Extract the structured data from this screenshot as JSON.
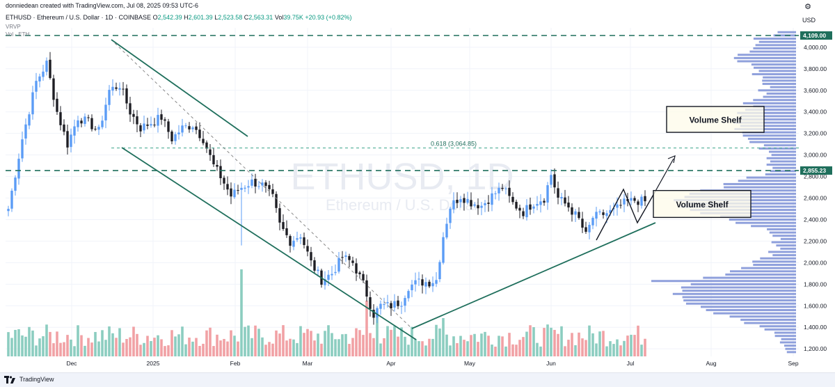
{
  "header": {
    "created_by": "donniedean created with TradingView.com, Jul 08, 2025 09:53 UTC-6",
    "symbol_line": "ETHUSD · Ethereum / U.S. Dollar · 1D · COINBASE",
    "open_label": "O",
    "open": "2,542.39",
    "high_label": "H",
    "high": "2,601.39",
    "low_label": "L",
    "low": "2,523.58",
    "close_label": "C",
    "close": "2,563.31",
    "vol_label": "Vol",
    "vol": "39.75K",
    "change": "+20.93 (+0.82%)",
    "indicator_1": "VRVP",
    "indicator_2": "Vol · ETH",
    "currency": "USD"
  },
  "watermark": {
    "symbol": "ETHUSD, 1D",
    "name": "Ethereum / U.S. Dollar"
  },
  "footer": {
    "brand": "TradingView"
  },
  "colors": {
    "up": "#5b9cf6",
    "down": "#1e1e24",
    "vol_up": "#8ccdc0",
    "vol_down": "#f1a1a5",
    "profile": "#7b8fd6",
    "trend": "#1f6f5c",
    "dash": "#1f6f5c"
  },
  "chart_data": {
    "type": "candlestick",
    "x_labels": [
      "Dec",
      "2025",
      "Feb",
      "Mar",
      "Apr",
      "May",
      "Jun",
      "Jul",
      "Aug",
      "Sep"
    ],
    "y_ticks": [
      "4,000.00",
      "3,800.00",
      "3,600.00",
      "3,400.00",
      "3,200.00",
      "3,000.00",
      "2,800.00",
      "2,600.00",
      "2,400.00",
      "2,200.00",
      "2,000.00",
      "1,800.00",
      "1,600.00",
      "1,400.00",
      "1,200.00"
    ],
    "y_tick_values": [
      4000,
      3800,
      3600,
      3400,
      3200,
      3000,
      2800,
      2600,
      2400,
      2200,
      2000,
      1800,
      1600,
      1400,
      1200
    ],
    "ylim": [
      1130,
      4180
    ],
    "price_levels": [
      {
        "value": 4109,
        "label": "4,109.00"
      },
      {
        "value": 2855.23,
        "label": "2,855.23"
      }
    ],
    "fib_level": {
      "value": 3064.85,
      "label": "0.618 (3,064.85)"
    },
    "annotations": [
      {
        "text": "Volume Shelf",
        "price_top": 3450,
        "price_bottom": 3210
      },
      {
        "text": "Volume Shelf",
        "price_top": 2670,
        "price_bottom": 2420
      }
    ],
    "close_path_anchors": [
      [
        0,
        2500
      ],
      [
        4,
        3150
      ],
      [
        8,
        3680
      ],
      [
        11,
        3850
      ],
      [
        14,
        3400
      ],
      [
        17,
        3100
      ],
      [
        20,
        3350
      ],
      [
        23,
        3300
      ],
      [
        26,
        3220
      ],
      [
        29,
        3600
      ],
      [
        32,
        3650
      ],
      [
        35,
        3400
      ],
      [
        38,
        3250
      ],
      [
        41,
        3300
      ],
      [
        44,
        3350
      ],
      [
        47,
        3150
      ],
      [
        50,
        3250
      ],
      [
        53,
        3280
      ],
      [
        56,
        3150
      ],
      [
        59,
        2900
      ],
      [
        61,
        2800
      ],
      [
        64,
        2620
      ],
      [
        67,
        2700
      ],
      [
        70,
        2750
      ],
      [
        73,
        2720
      ],
      [
        76,
        2600
      ],
      [
        78,
        2350
      ],
      [
        81,
        2200
      ],
      [
        84,
        2260
      ],
      [
        87,
        2000
      ],
      [
        90,
        1840
      ],
      [
        93,
        1900
      ],
      [
        96,
        2050
      ],
      [
        99,
        2000
      ],
      [
        102,
        1800
      ],
      [
        105,
        1520
      ],
      [
        107,
        1600
      ],
      [
        110,
        1600
      ],
      [
        113,
        1640
      ],
      [
        115,
        1780
      ],
      [
        118,
        1820
      ],
      [
        121,
        1820
      ],
      [
        123,
        1840
      ],
      [
        125,
        2250
      ],
      [
        127,
        2520
      ],
      [
        130,
        2620
      ],
      [
        133,
        2560
      ],
      [
        136,
        2530
      ],
      [
        139,
        2620
      ],
      [
        142,
        2700
      ],
      [
        145,
        2550
      ],
      [
        148,
        2470
      ],
      [
        151,
        2560
      ],
      [
        154,
        2600
      ],
      [
        156,
        2820
      ],
      [
        158,
        2600
      ],
      [
        161,
        2520
      ],
      [
        164,
        2400
      ],
      [
        166,
        2250
      ],
      [
        168,
        2420
      ],
      [
        171,
        2450
      ],
      [
        174,
        2480
      ],
      [
        177,
        2550
      ],
      [
        180,
        2580
      ],
      [
        183,
        2565
      ]
    ]
  }
}
